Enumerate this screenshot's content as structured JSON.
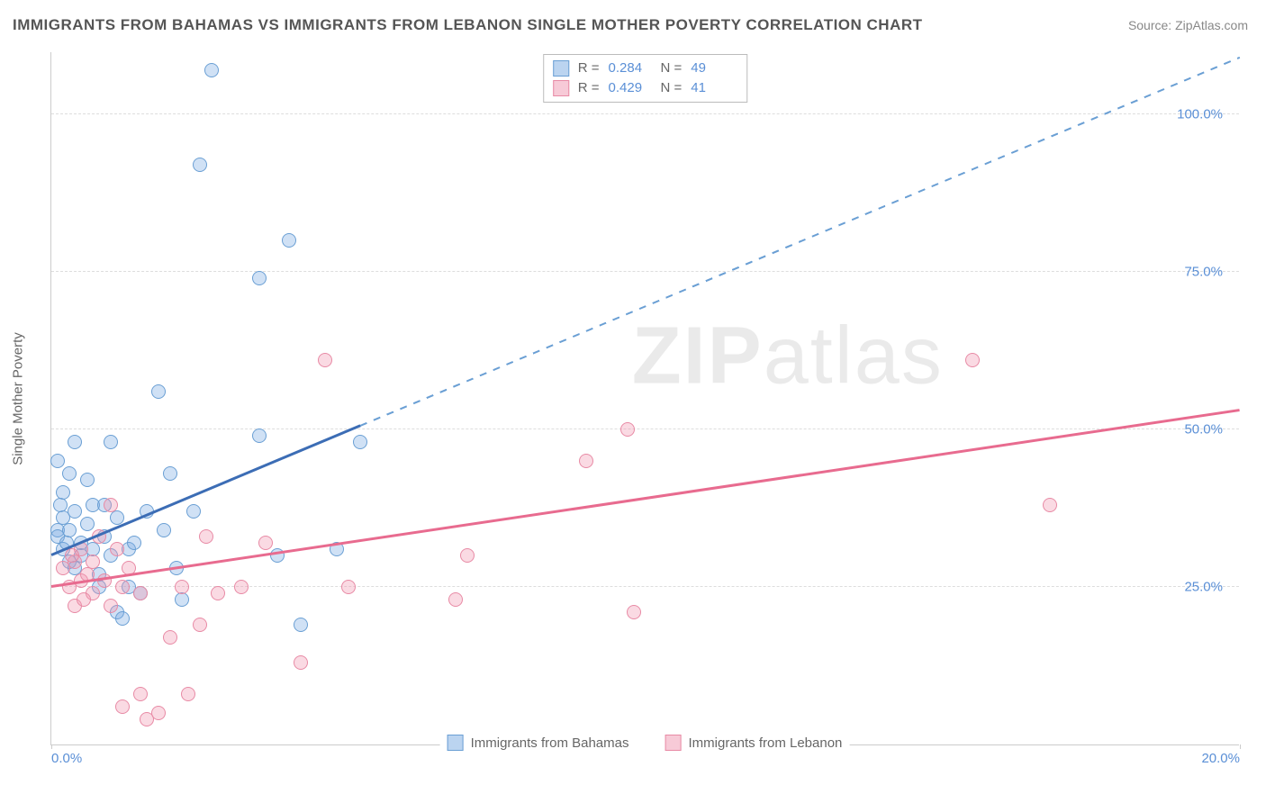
{
  "title": "IMMIGRANTS FROM BAHAMAS VS IMMIGRANTS FROM LEBANON SINGLE MOTHER POVERTY CORRELATION CHART",
  "source": "Source: ZipAtlas.com",
  "watermark_bold": "ZIP",
  "watermark_thin": "atlas",
  "y_axis_label": "Single Mother Poverty",
  "chart": {
    "type": "scatter",
    "background_color": "#ffffff",
    "grid_color": "#dddddd",
    "axis_color": "#cccccc",
    "xlim": [
      0,
      20
    ],
    "ylim": [
      0,
      110
    ],
    "xtick_values": [
      0,
      10,
      20
    ],
    "xtick_labels": [
      "0.0%",
      "",
      "20.0%"
    ],
    "ytick_values": [
      25,
      50,
      75,
      100
    ],
    "ytick_labels": [
      "25.0%",
      "50.0%",
      "75.0%",
      "100.0%"
    ],
    "tick_label_color": "#5a8fd6",
    "series": [
      {
        "name": "Immigrants from Bahamas",
        "color_fill": "rgba(120,170,225,0.35)",
        "color_stroke": "#6a9fd4",
        "marker_size": 16,
        "r_value": "0.284",
        "n_value": "49",
        "trend": {
          "x1": 0,
          "y1": 30,
          "x2": 20,
          "y2": 109,
          "solid_until_x": 5.2,
          "color_solid": "#3c6db5",
          "color_dashed": "#6a9fd4"
        },
        "points": [
          [
            0.1,
            34
          ],
          [
            0.1,
            33
          ],
          [
            0.2,
            31
          ],
          [
            0.2,
            36
          ],
          [
            0.3,
            29
          ],
          [
            0.2,
            40
          ],
          [
            0.3,
            43
          ],
          [
            0.1,
            45
          ],
          [
            0.4,
            48
          ],
          [
            0.3,
            34
          ],
          [
            0.4,
            37
          ],
          [
            0.5,
            30
          ],
          [
            0.5,
            32
          ],
          [
            0.6,
            35
          ],
          [
            0.7,
            38
          ],
          [
            0.8,
            25
          ],
          [
            0.8,
            27
          ],
          [
            0.9,
            33
          ],
          [
            1.0,
            30
          ],
          [
            1.0,
            48
          ],
          [
            1.1,
            36
          ],
          [
            1.1,
            21
          ],
          [
            1.3,
            31
          ],
          [
            1.3,
            25
          ],
          [
            1.5,
            24
          ],
          [
            1.6,
            37
          ],
          [
            1.8,
            56
          ],
          [
            1.9,
            34
          ],
          [
            2.0,
            43
          ],
          [
            2.2,
            23
          ],
          [
            2.4,
            37
          ],
          [
            2.7,
            107
          ],
          [
            2.5,
            92
          ],
          [
            3.5,
            49
          ],
          [
            3.5,
            74
          ],
          [
            4.0,
            80
          ],
          [
            3.8,
            30
          ],
          [
            4.2,
            19
          ],
          [
            4.8,
            31
          ],
          [
            5.2,
            48
          ],
          [
            1.2,
            20
          ],
          [
            0.6,
            42
          ],
          [
            0.4,
            28
          ],
          [
            0.7,
            31
          ],
          [
            0.9,
            38
          ],
          [
            1.4,
            32
          ],
          [
            2.1,
            28
          ],
          [
            0.15,
            38
          ],
          [
            0.25,
            32
          ]
        ]
      },
      {
        "name": "Immigrants from Lebanon",
        "color_fill": "rgba(240,150,175,0.35)",
        "color_stroke": "#e88aa5",
        "marker_size": 16,
        "r_value": "0.429",
        "n_value": "41",
        "trend": {
          "x1": 0,
          "y1": 25,
          "x2": 20,
          "y2": 53,
          "solid_until_x": 20,
          "color_solid": "#e86b8f"
        },
        "points": [
          [
            0.2,
            28
          ],
          [
            0.3,
            25
          ],
          [
            0.4,
            29
          ],
          [
            0.4,
            22
          ],
          [
            0.5,
            26
          ],
          [
            0.5,
            31
          ],
          [
            0.6,
            27
          ],
          [
            0.7,
            24
          ],
          [
            0.7,
            29
          ],
          [
            0.8,
            33
          ],
          [
            0.9,
            26
          ],
          [
            1.0,
            38
          ],
          [
            1.0,
            22
          ],
          [
            1.2,
            25
          ],
          [
            1.2,
            6
          ],
          [
            1.3,
            28
          ],
          [
            1.5,
            24
          ],
          [
            1.5,
            8
          ],
          [
            1.6,
            4
          ],
          [
            1.8,
            5
          ],
          [
            2.0,
            17
          ],
          [
            2.2,
            25
          ],
          [
            2.3,
            8
          ],
          [
            2.5,
            19
          ],
          [
            2.6,
            33
          ],
          [
            2.8,
            24
          ],
          [
            3.2,
            25
          ],
          [
            3.6,
            32
          ],
          [
            4.2,
            13
          ],
          [
            4.6,
            61
          ],
          [
            5.0,
            25
          ],
          [
            6.8,
            23
          ],
          [
            7.0,
            30
          ],
          [
            9.0,
            45
          ],
          [
            9.8,
            21
          ],
          [
            9.7,
            50
          ],
          [
            15.5,
            61
          ],
          [
            16.8,
            38
          ],
          [
            0.35,
            30
          ],
          [
            0.55,
            23
          ],
          [
            1.1,
            31
          ]
        ]
      }
    ]
  },
  "stats_box": {
    "r_label": "R =",
    "n_label": "N ="
  },
  "legend": {
    "series1": "Immigrants from Bahamas",
    "series2": "Immigrants from Lebanon"
  }
}
